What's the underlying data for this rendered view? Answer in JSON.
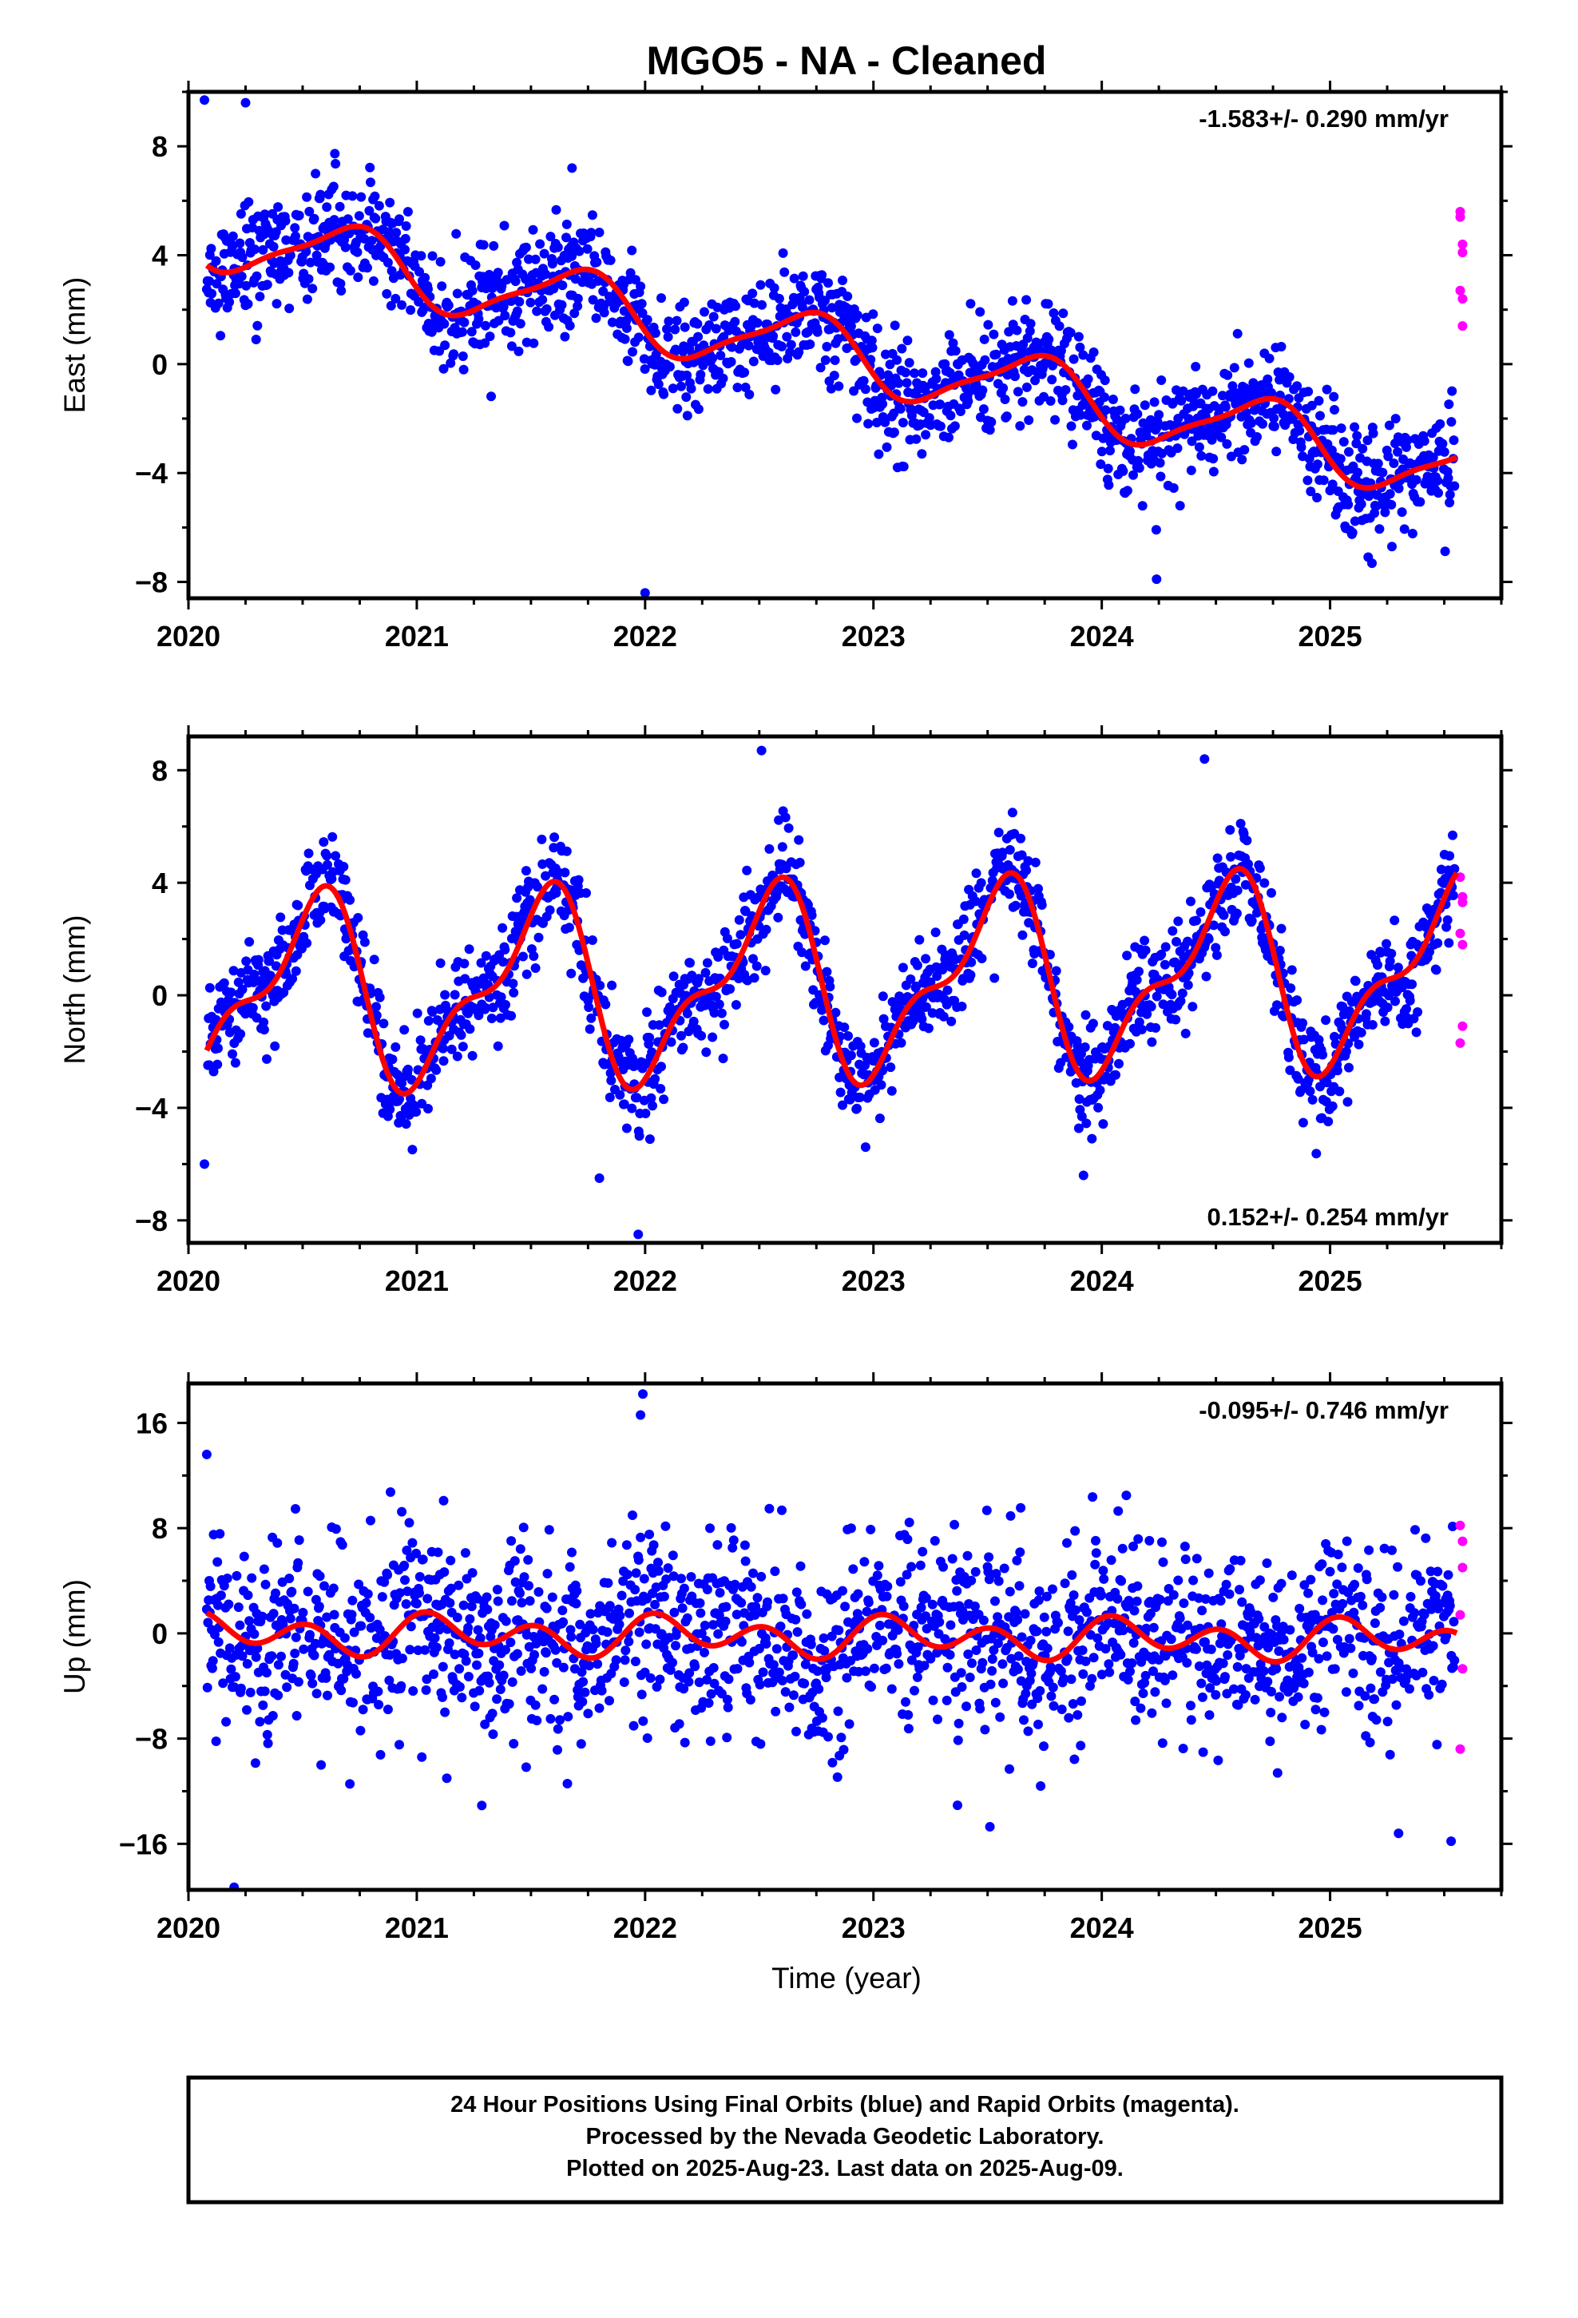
{
  "title": "MGO5  - NA - Cleaned",
  "x_axis_label": "Time (year)",
  "footer": {
    "line1": "24 Hour Positions Using Final Orbits (blue) and Rapid Orbits (magenta).",
    "line2": "Processed by the Nevada Geodetic Laboratory.",
    "line3": "Plotted on 2025-Aug-23. Last data on 2025-Aug-09."
  },
  "colors": {
    "final_orbits": "#0000ff",
    "rapid_orbits": "#ff00ff",
    "model_fit": "#ff0000",
    "frame": "#000000"
  },
  "chart_data": [
    {
      "type": "scatter",
      "panel": "east",
      "ylabel": "East (mm)",
      "rate_annotation": "-1.583+/- 0.290 mm/yr",
      "annotation_position": "top-right",
      "xlim": [
        2020.0,
        2025.75
      ],
      "ylim": [
        -8.6,
        10.0
      ],
      "x_ticks": [
        2020,
        2021,
        2022,
        2023,
        2024,
        2025
      ],
      "x_tick_labels": [
        "2020",
        "2021",
        "2022",
        "2023",
        "2024",
        "2025"
      ],
      "y_ticks": [
        -8,
        -4,
        0,
        4,
        8
      ],
      "y_tick_labels": [
        "−8",
        "−4",
        "0",
        "4",
        "8"
      ],
      "trend": {
        "start_year": 2020.08,
        "start_value": 4.8,
        "rate": -1.583
      },
      "annual": {
        "amp": 1.2,
        "phase": 0.45
      },
      "semiannual": {
        "amp": 0.3,
        "phase": 0.2
      },
      "noise_sd": 1.0,
      "rapid_points": {
        "x": [
          2025.57,
          2025.57,
          2025.58,
          2025.58,
          2025.57,
          2025.58,
          2025.58
        ],
        "y": [
          5.6,
          5.4,
          4.4,
          4.1,
          2.7,
          2.4,
          1.4
        ]
      },
      "outliers": {
        "x": [
          2020.07,
          2020.25,
          2022.0,
          2021.68,
          2024.24
        ],
        "y": [
          9.7,
          9.6,
          -8.4,
          7.2,
          -7.9
        ]
      },
      "series": [
        {
          "name": "Final Orbits (blue)",
          "kind": "points"
        },
        {
          "name": "Rapid Orbits (magenta)",
          "kind": "points"
        },
        {
          "kind": "fit"
        }
      ]
    },
    {
      "type": "scatter",
      "panel": "north",
      "ylabel": "North (mm)",
      "rate_annotation": "0.152+/- 0.254 mm/yr",
      "annotation_position": "bottom-right",
      "xlim": [
        2020.0,
        2025.75
      ],
      "ylim": [
        -8.8,
        9.2
      ],
      "x_ticks": [
        2020,
        2021,
        2022,
        2023,
        2024,
        2025
      ],
      "x_tick_labels": [
        "2020",
        "2021",
        "2022",
        "2023",
        "2024",
        "2025"
      ],
      "y_ticks": [
        -8,
        -4,
        0,
        4,
        8
      ],
      "y_tick_labels": [
        "−8",
        "−4",
        "0",
        "4",
        "8"
      ],
      "trend": {
        "start_year": 2020.08,
        "start_value": 0.0,
        "rate": 0.152
      },
      "annual": {
        "amp": 3.0,
        "phase": 0.28
      },
      "semiannual": {
        "amp": 1.3,
        "phase": 0.02
      },
      "noise_sd": 0.9,
      "rapid_points": {
        "x": [
          2025.57,
          2025.58,
          2025.58,
          2025.57,
          2025.58,
          2025.58,
          2025.57
        ],
        "y": [
          4.2,
          3.5,
          3.3,
          2.2,
          1.8,
          -1.1,
          -1.7
        ]
      },
      "outliers": {
        "x": [
          2020.07,
          2021.8,
          2021.97,
          2022.51,
          2024.45,
          2023.92
        ],
        "y": [
          -6.0,
          -6.5,
          -8.5,
          8.7,
          8.4,
          -6.4
        ]
      },
      "series": [
        {
          "name": "Final Orbits (blue)",
          "kind": "points"
        },
        {
          "name": "Rapid Orbits (magenta)",
          "kind": "points"
        },
        {
          "kind": "fit"
        }
      ]
    },
    {
      "type": "scatter",
      "panel": "up",
      "ylabel": "Up (mm)",
      "rate_annotation": "-0.095+/- 0.746 mm/yr",
      "annotation_position": "top-right",
      "xlim": [
        2020.0,
        2025.75
      ],
      "ylim": [
        -19.5,
        19.0
      ],
      "x_ticks": [
        2020,
        2021,
        2022,
        2023,
        2024,
        2025
      ],
      "x_tick_labels": [
        "2020",
        "2021",
        "2022",
        "2023",
        "2024",
        "2025"
      ],
      "y_ticks": [
        -16,
        -8,
        0,
        8,
        16
      ],
      "y_tick_labels": [
        "−16",
        "−8",
        "0",
        "8",
        "16"
      ],
      "trend": {
        "start_year": 2020.08,
        "start_value": 0.0,
        "rate": -0.095
      },
      "annual": {
        "amp": 0.7,
        "phase": 0.9
      },
      "semiannual": {
        "amp": 1.2,
        "phase": 0.4
      },
      "noise_sd": 3.7,
      "rapid_points": {
        "x": [
          2025.57,
          2025.58,
          2025.58,
          2025.57,
          2025.58,
          2025.57
        ],
        "y": [
          8.2,
          7.0,
          5.0,
          1.4,
          -2.7,
          -8.8
        ]
      },
      "outliers": {
        "x": [
          2020.08,
          2020.2,
          2021.99,
          2021.98,
          2023.51,
          2025.3,
          2025.53
        ],
        "y": [
          13.6,
          -19.3,
          18.2,
          16.6,
          -14.7,
          -15.2,
          -15.8
        ]
      },
      "series": [
        {
          "name": "Final Orbits (blue)",
          "kind": "points"
        },
        {
          "name": "Rapid Orbits (magenta)",
          "kind": "points"
        },
        {
          "kind": "fit"
        }
      ]
    }
  ]
}
